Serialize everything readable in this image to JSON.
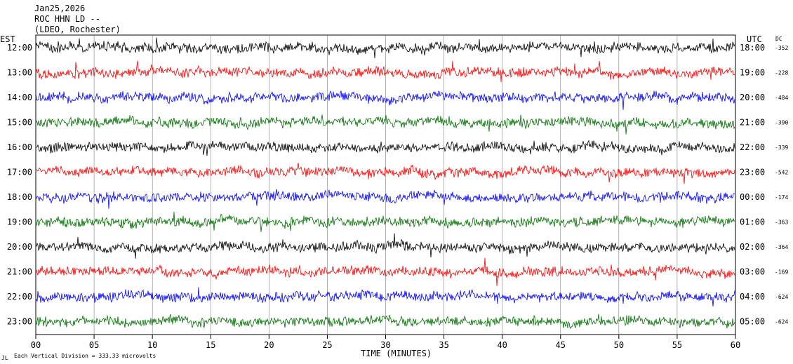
{
  "header": {
    "date": "Jan25,2026",
    "station": "ROC HHN LD --",
    "network": "(LDEO, Rochester)"
  },
  "left_axis_title": "EST",
  "right_axis_title": "UTC",
  "dc_title": "DC",
  "footer": {
    "x_axis_label": "TIME (MINUTES)",
    "scale_note": "Each Vertical Division =  333.33 microvolts",
    "corner_mark": "JL"
  },
  "chart_data": {
    "type": "line",
    "title": "ROC HHN LD --",
    "xlabel": "TIME (MINUTES)",
    "xlim": [
      0,
      60
    ],
    "x_ticks": [
      "00",
      "05",
      "10",
      "15",
      "20",
      "25",
      "30",
      "35",
      "40",
      "45",
      "50",
      "55",
      "60"
    ],
    "x_tick_values": [
      0,
      5,
      10,
      15,
      20,
      25,
      30,
      35,
      40,
      45,
      50,
      55,
      60
    ],
    "trace_colors": [
      "#000000",
      "#ff0000",
      "#0000ff",
      "#007000"
    ],
    "rows": [
      {
        "est": "12:00",
        "utc": "18:00",
        "dc": "-352"
      },
      {
        "est": "13:00",
        "utc": "19:00",
        "dc": "-228"
      },
      {
        "est": "14:00",
        "utc": "20:00",
        "dc": "-484"
      },
      {
        "est": "15:00",
        "utc": "21:00",
        "dc": "-390"
      },
      {
        "est": "16:00",
        "utc": "22:00",
        "dc": "-339"
      },
      {
        "est": "17:00",
        "utc": "23:00",
        "dc": "-542"
      },
      {
        "est": "18:00",
        "utc": "00:00",
        "dc": "-174"
      },
      {
        "est": "19:00",
        "utc": "01:00",
        "dc": "-363"
      },
      {
        "est": "20:00",
        "utc": "02:00",
        "dc": "-364"
      },
      {
        "est": "21:00",
        "utc": "03:00",
        "dc": "-169"
      },
      {
        "est": "22:00",
        "utc": "04:00",
        "dc": "-624"
      },
      {
        "est": "23:00",
        "utc": "05:00",
        "dc": "-624"
      }
    ],
    "grid": true
  }
}
